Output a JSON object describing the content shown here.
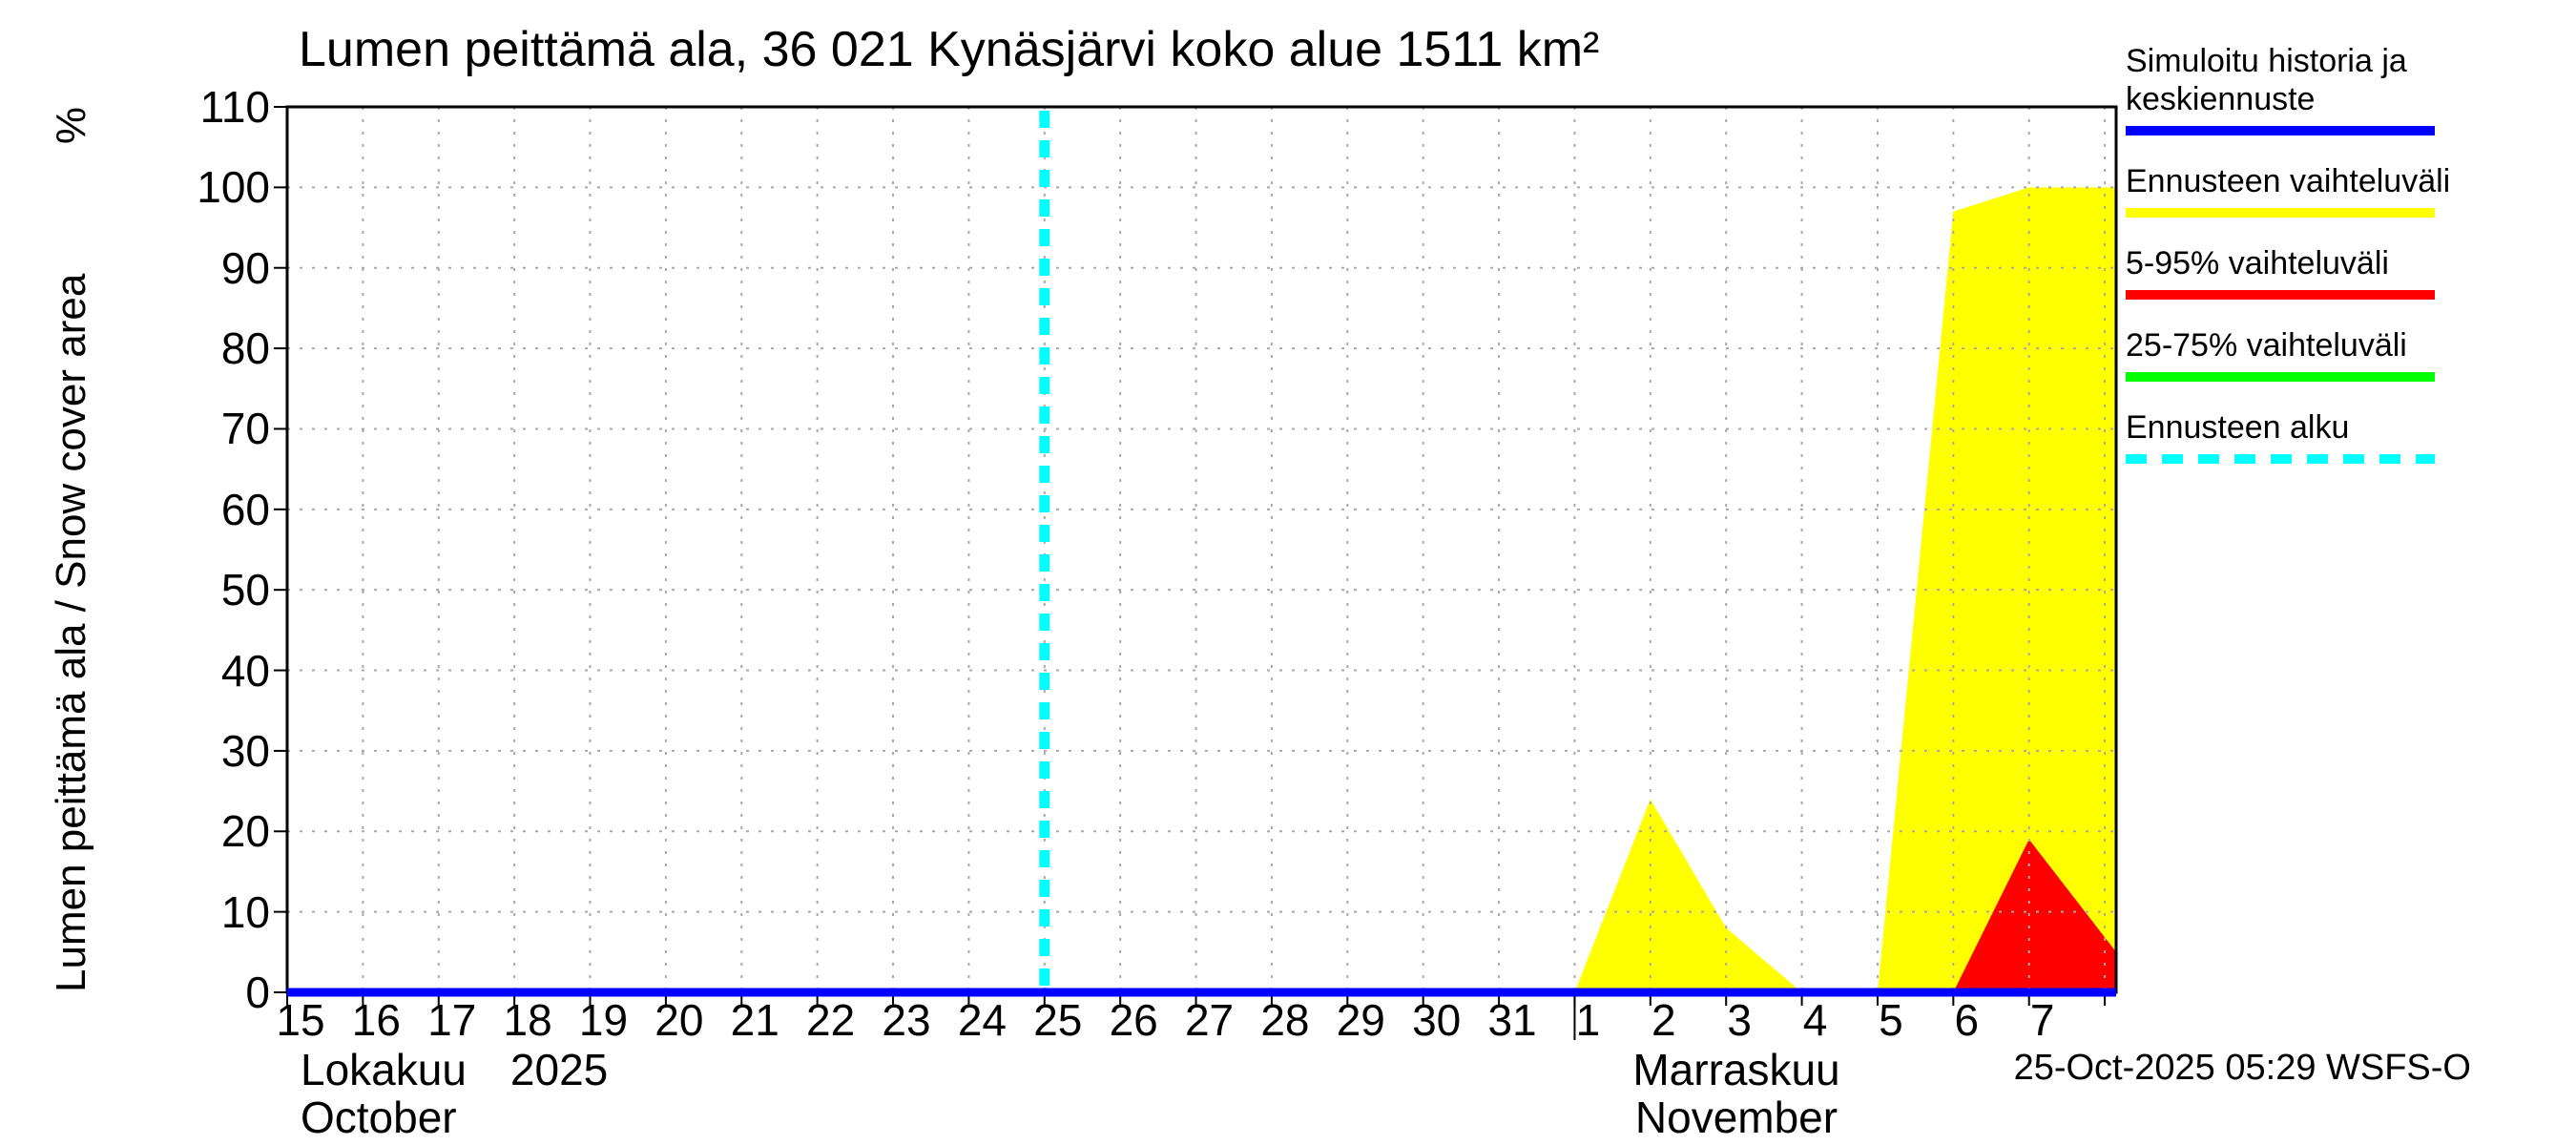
{
  "title": "Lumen peittämä ala, 36 021 Kynäsjärvi koko alue 1511 km²",
  "y_axis": {
    "label": "Lumen peittämä ala / Snow cover area",
    "unit": "%"
  },
  "y_ticks": [
    "0",
    "10",
    "20",
    "30",
    "40",
    "50",
    "60",
    "70",
    "80",
    "90",
    "100",
    "110"
  ],
  "x_axis": {
    "tick_labels": [
      "15",
      "16",
      "17",
      "18",
      "19",
      "20",
      "21",
      "22",
      "23",
      "24",
      "25",
      "26",
      "27",
      "28",
      "29",
      "30",
      "31",
      "1",
      "2",
      "3",
      "4",
      "5",
      "6",
      "7"
    ],
    "month1": {
      "name_fi": "Lokakuu",
      "year": "2025",
      "name_en": "October"
    },
    "month2": {
      "name_fi": "Marraskuu",
      "name_en": "November"
    }
  },
  "legend": {
    "items": [
      {
        "label": "Simuloitu historia ja keskiennuste",
        "color": "#0000ff",
        "style": "solid"
      },
      {
        "label": "Ennusteen vaihteluväli",
        "color": "#ffff00",
        "style": "solid"
      },
      {
        "label": "5-95% vaihteluväli",
        "color": "#ff0000",
        "style": "solid"
      },
      {
        "label": "25-75% vaihteluväli",
        "color": "#00ff00",
        "style": "solid"
      },
      {
        "label": "Ennusteen alku",
        "color": "#00ffff",
        "style": "dashed"
      }
    ]
  },
  "footer": {
    "timestamp": "25-Oct-2025 05:29 WSFS-O"
  },
  "chart_data": {
    "type": "area",
    "title": "Lumen peittämä ala, 36 021 Kynäsjärvi koko alue 1511 km²",
    "ylabel": "Lumen peittämä ala / Snow cover area (%)",
    "ylim": [
      0,
      110
    ],
    "ytick_step": 10,
    "x_unit": "days, day 0 = 15-Oct-2025, one tick per day",
    "x_span": 24.15,
    "month_boundary_day": 17,
    "forecast_start_day": 10,
    "forecast_start_date": "25-Oct-2025",
    "grid": true,
    "legend_position": "right-outside",
    "series": [
      {
        "name": "Simuloitu historia ja keskiennuste",
        "type": "line",
        "color": "#0000ff",
        "points": [
          [
            0,
            0
          ],
          [
            24.15,
            0
          ]
        ]
      },
      {
        "name": "Ennusteen vaihteluväli",
        "type": "area",
        "color": "#ffff00",
        "polygons": [
          [
            [
              17,
              0
            ],
            [
              18,
              24
            ],
            [
              19,
              8
            ],
            [
              20,
              0
            ]
          ],
          [
            [
              21,
              0
            ],
            [
              22,
              97
            ],
            [
              23,
              100
            ],
            [
              24.15,
              100
            ],
            [
              24.15,
              0
            ]
          ]
        ]
      },
      {
        "name": "5-95% vaihteluväli",
        "type": "area",
        "color": "#ff0000",
        "polygons": [
          [
            [
              22,
              0
            ],
            [
              23,
              19
            ],
            [
              24.15,
              5
            ],
            [
              24.15,
              0
            ]
          ]
        ]
      },
      {
        "name": "25-75% vaihteluväli",
        "type": "area",
        "color": "#00ff00",
        "polygons": []
      }
    ]
  }
}
